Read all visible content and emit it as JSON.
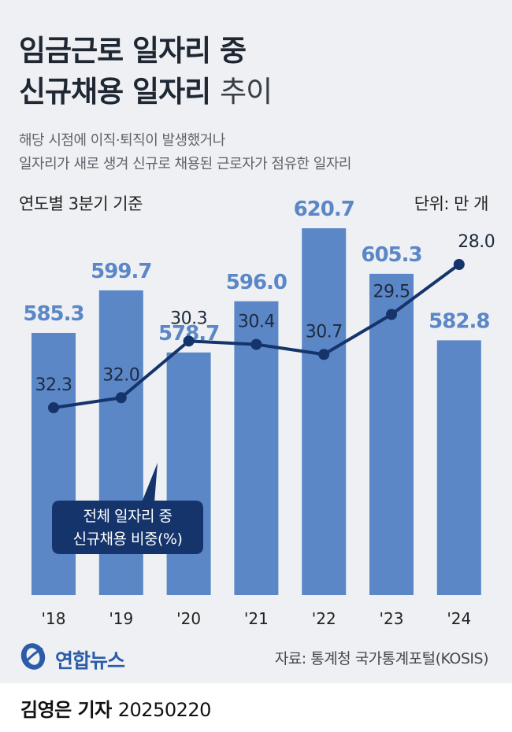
{
  "header": {
    "title_line1": "임금근로 일자리 중",
    "title_line2_bold": "신규채용 일자리",
    "title_line2_light": "추이",
    "subtitle_line1": "해당 시점에 이직·퇴직이 발생했거나",
    "subtitle_line2": "일자리가 새로 생겨 신규로 채용된 근로자가 점유한 일자리",
    "basis": "연도별 3분기 기준",
    "unit": "단위: 만 개"
  },
  "chart_data": {
    "type": "bar",
    "categories": [
      "'18",
      "'19",
      "'20",
      "'21",
      "'22",
      "'23",
      "'24"
    ],
    "series": [
      {
        "type": "bar",
        "values": [
          585.3,
          599.7,
          578.7,
          596.0,
          620.7,
          605.3,
          582.8
        ],
        "color": "#5b87c7",
        "labels": [
          "585.3",
          "599.7",
          "578.7",
          "596.0",
          "620.7",
          "605.3",
          "582.8"
        ]
      },
      {
        "type": "line",
        "name": "전체 일자리 중 신규채용 비중(%)",
        "values": [
          32.3,
          32.0,
          30.3,
          30.4,
          30.7,
          29.5,
          28.0
        ],
        "color": "#15346b",
        "labels": [
          "32.3",
          "32.0",
          "30.3",
          "30.4",
          "30.7",
          "29.5",
          "28.0"
        ]
      }
    ],
    "callout_line1": "전체 일자리 중",
    "callout_line2": "신규채용 비중(%)",
    "grid": false
  },
  "footer": {
    "logo_text": "연합뉴스",
    "source": "자료: 통계청 국가통계포털(KOSIS)",
    "reporter": "김영은 기자",
    "date": "20250220"
  },
  "colors": {
    "bar": "#5b87c7",
    "bar_label": "#5b87c7",
    "line": "#15346b",
    "background": "#eef0f3"
  }
}
